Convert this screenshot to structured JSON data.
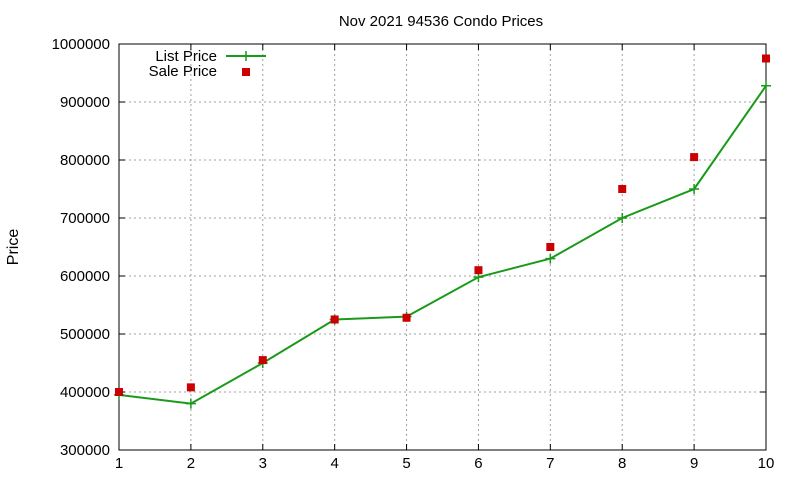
{
  "chart_data": {
    "type": "line",
    "title": "Nov 2021 94536 Condo Prices",
    "xlabel": "",
    "ylabel": "Price",
    "x": [
      1,
      2,
      3,
      4,
      5,
      6,
      7,
      8,
      9,
      10
    ],
    "xticks": [
      "1",
      "2",
      "3",
      "4",
      "5",
      "6",
      "7",
      "8",
      "9",
      "10"
    ],
    "xlim": [
      1,
      10
    ],
    "ylim": [
      300000,
      1000000
    ],
    "yticks": [
      "300000",
      "400000",
      "500000",
      "600000",
      "700000",
      "800000",
      "900000",
      "1000000"
    ],
    "grid": true,
    "legend_position": "top-left",
    "series": [
      {
        "name": "List Price",
        "style": "line+cross",
        "color": "#1a9a1a",
        "values": [
          395000,
          380000,
          450000,
          525000,
          530000,
          598000,
          630000,
          700000,
          750000,
          928000
        ]
      },
      {
        "name": "Sale Price",
        "style": "square",
        "color": "#cc0000",
        "values": [
          400000,
          408000,
          455000,
          525000,
          528000,
          610000,
          650000,
          750000,
          805000,
          975000
        ]
      }
    ]
  }
}
